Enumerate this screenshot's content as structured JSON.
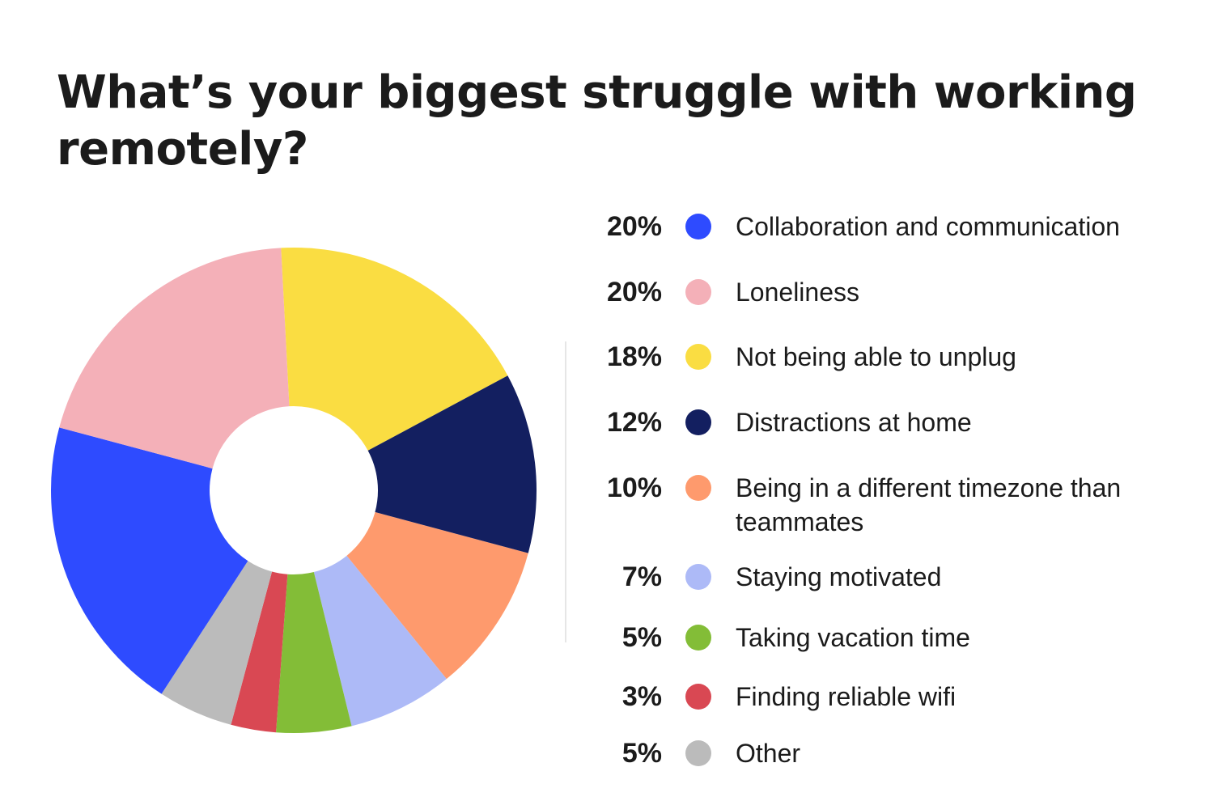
{
  "title": "What’s your biggest struggle with working remotely?",
  "chart_data": {
    "type": "pie",
    "title": "What’s your biggest struggle with working remotely?",
    "style": "donut",
    "legend_position": "right",
    "units": "%",
    "slices": [
      {
        "label": "Collaboration and communication",
        "value": 20,
        "display": "20%",
        "color": "#2e4bff"
      },
      {
        "label": "Loneliness",
        "value": 20,
        "display": "20%",
        "color": "#f4b0b8"
      },
      {
        "label": "Not being able to unplug",
        "value": 18,
        "display": "18%",
        "color": "#fadd42"
      },
      {
        "label": "Distractions at home",
        "value": 12,
        "display": "12%",
        "color": "#131f60"
      },
      {
        "label": "Being in a different timezone than teammates",
        "value": 10,
        "display": "10%",
        "color": "#fe9a6d"
      },
      {
        "label": "Staying motivated",
        "value": 7,
        "display": "7%",
        "color": "#adbaf7"
      },
      {
        "label": "Taking vacation time",
        "value": 5,
        "display": "5%",
        "color": "#83bd37"
      },
      {
        "label": "Finding reliable wifi",
        "value": 3,
        "display": "3%",
        "color": "#d94853"
      },
      {
        "label": "Other",
        "value": 5,
        "display": "5%",
        "color": "#bbbbbb"
      }
    ]
  }
}
